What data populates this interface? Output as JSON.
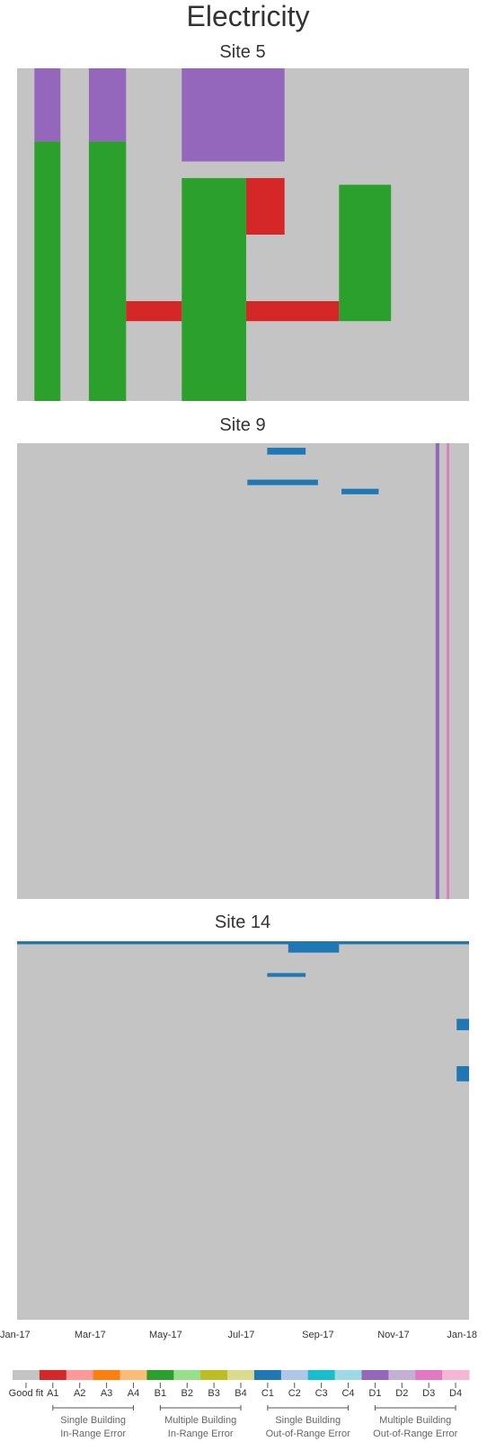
{
  "figure_title": "Electricity",
  "chart_data": [
    {
      "type": "heatmap",
      "title": "Site 5",
      "x_range": [
        "2017-01-01",
        "2018-01-01"
      ],
      "background_category": "Good fit",
      "bands": [
        {
          "code": "D1",
          "from": "2017-01-15",
          "to": "2017-02-05",
          "rows": [
            0.0,
            0.22
          ]
        },
        {
          "code": "D1",
          "from": "2017-02-28",
          "to": "2017-03-30",
          "rows": [
            0.0,
            0.22
          ]
        },
        {
          "code": "D1",
          "from": "2017-05-14",
          "to": "2017-08-05",
          "rows": [
            0.0,
            0.28
          ]
        },
        {
          "code": "B1",
          "from": "2017-01-15",
          "to": "2017-02-05",
          "rows": [
            0.22,
            1.0
          ]
        },
        {
          "code": "B1",
          "from": "2017-02-28",
          "to": "2017-03-30",
          "rows": [
            0.22,
            1.0
          ]
        },
        {
          "code": "B1",
          "from": "2017-05-14",
          "to": "2017-07-05",
          "rows": [
            0.33,
            1.0
          ]
        },
        {
          "code": "A1",
          "from": "2017-07-05",
          "to": "2017-08-05",
          "rows": [
            0.33,
            0.5
          ]
        },
        {
          "code": "A1",
          "from": "2017-03-30",
          "to": "2017-05-14",
          "rows": [
            0.7,
            0.76
          ]
        },
        {
          "code": "A1",
          "from": "2017-07-05",
          "to": "2017-09-18",
          "rows": [
            0.7,
            0.76
          ]
        },
        {
          "code": "B1",
          "from": "2017-09-18",
          "to": "2017-10-30",
          "rows": [
            0.35,
            0.76
          ]
        }
      ]
    },
    {
      "type": "heatmap",
      "title": "Site 9",
      "x_range": [
        "2017-01-01",
        "2018-01-01"
      ],
      "background_category": "Good fit",
      "bands": [
        {
          "code": "C1",
          "from": "2017-07-22",
          "to": "2017-08-22",
          "rows": [
            0.01,
            0.025
          ]
        },
        {
          "code": "C1",
          "from": "2017-07-06",
          "to": "2017-09-01",
          "rows": [
            0.08,
            0.092
          ]
        },
        {
          "code": "C1",
          "from": "2017-09-20",
          "to": "2017-10-20",
          "rows": [
            0.1,
            0.112
          ]
        },
        {
          "code": "D1",
          "from": "2017-12-05",
          "to": "2017-12-08",
          "rows": [
            0.0,
            1.0
          ]
        },
        {
          "code": "D3",
          "from": "2017-12-14",
          "to": "2017-12-16",
          "rows": [
            0.0,
            1.0
          ]
        }
      ]
    },
    {
      "type": "heatmap",
      "title": "Site 14",
      "x_range": [
        "2017-01-01",
        "2018-01-01"
      ],
      "background_category": "Good fit",
      "bands": [
        {
          "code": "C1",
          "from": "2017-01-01",
          "to": "2018-01-01",
          "rows": [
            0.0,
            0.008
          ]
        },
        {
          "code": "C1",
          "from": "2017-08-08",
          "to": "2017-09-18",
          "rows": [
            0.0,
            0.03
          ]
        },
        {
          "code": "C1",
          "from": "2017-07-22",
          "to": "2017-08-22",
          "rows": [
            0.084,
            0.094
          ]
        },
        {
          "code": "C1",
          "from": "2017-12-22",
          "to": "2018-01-01",
          "rows": [
            0.205,
            0.235
          ]
        },
        {
          "code": "C1",
          "from": "2017-12-22",
          "to": "2018-01-01",
          "rows": [
            0.33,
            0.37
          ]
        }
      ]
    }
  ],
  "x_axis": {
    "ticks": [
      {
        "label": "Jan-17",
        "date": "2017-01-01"
      },
      {
        "label": "Mar-17",
        "date": "2017-03-01"
      },
      {
        "label": "May-17",
        "date": "2017-05-01"
      },
      {
        "label": "Jul-17",
        "date": "2017-07-01"
      },
      {
        "label": "Sep-17",
        "date": "2017-09-01"
      },
      {
        "label": "Nov-17",
        "date": "2017-11-01"
      },
      {
        "label": "Jan-18",
        "date": "2018-01-01"
      }
    ]
  },
  "legend": {
    "items": [
      {
        "code": "Good fit",
        "color": "#c4c4c4"
      },
      {
        "code": "A1",
        "color": "#d62728"
      },
      {
        "code": "A2",
        "color": "#ff9896"
      },
      {
        "code": "A3",
        "color": "#ff7f0e"
      },
      {
        "code": "A4",
        "color": "#ffbb78"
      },
      {
        "code": "B1",
        "color": "#2ca02c"
      },
      {
        "code": "B2",
        "color": "#98df8a"
      },
      {
        "code": "B3",
        "color": "#bcbd22"
      },
      {
        "code": "B4",
        "color": "#dbdb8d"
      },
      {
        "code": "C1",
        "color": "#1f77b4"
      },
      {
        "code": "C2",
        "color": "#aec7e8"
      },
      {
        "code": "C3",
        "color": "#17becf"
      },
      {
        "code": "C4",
        "color": "#9edae5"
      },
      {
        "code": "D1",
        "color": "#9467bd"
      },
      {
        "code": "D2",
        "color": "#c5b0d5"
      },
      {
        "code": "D3",
        "color": "#e377c2"
      },
      {
        "code": "D4",
        "color": "#f7b6d2"
      }
    ],
    "groups": [
      {
        "line1": "Single Building",
        "line2": "In-Range Error",
        "from": "A1",
        "to": "A4"
      },
      {
        "line1": "Multiple Building",
        "line2": "In-Range Error",
        "from": "B1",
        "to": "B4"
      },
      {
        "line1": "Single Building",
        "line2": "Out-of-Range Error",
        "from": "C1",
        "to": "C4"
      },
      {
        "line1": "Multiple Building",
        "line2": "Out-of-Range Error",
        "from": "D1",
        "to": "D4"
      }
    ]
  }
}
